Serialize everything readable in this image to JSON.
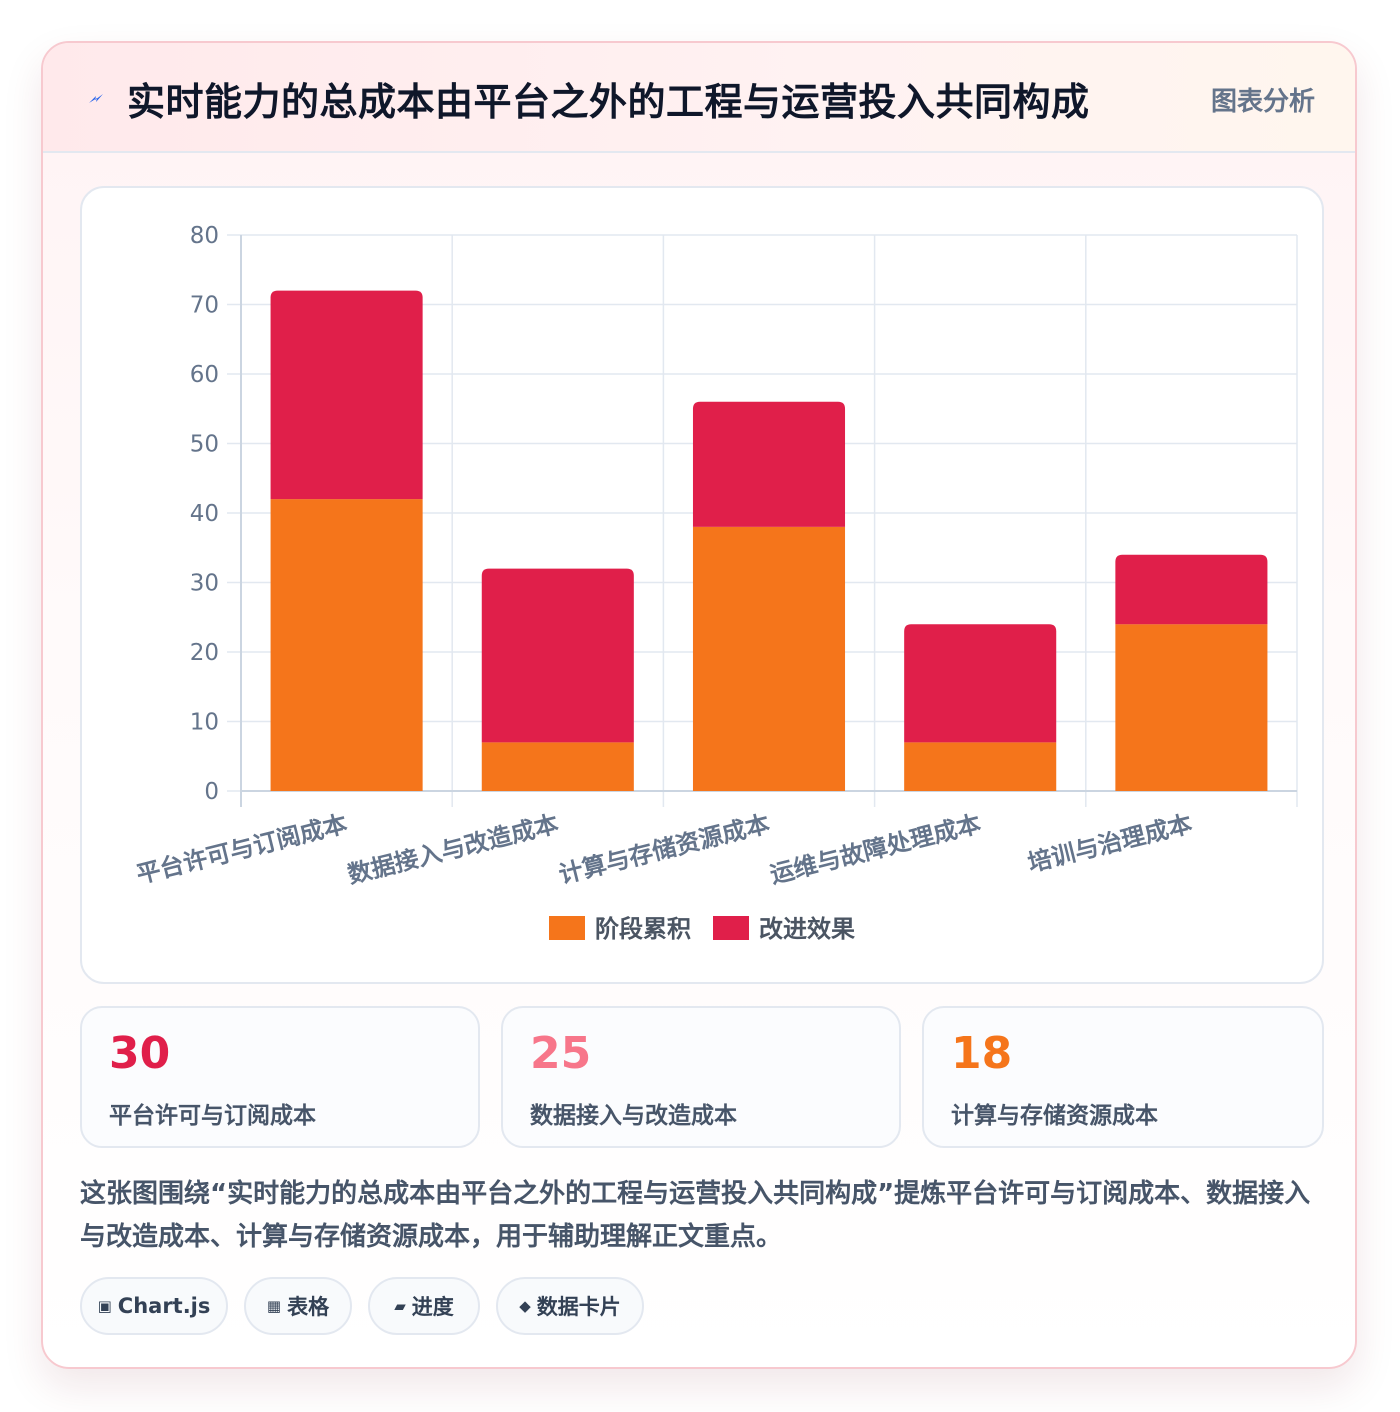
{
  "header": {
    "icon": "lightning-bolt-icon",
    "title": "实时能力的总成本由平台之外的工程与运营投入共同构成",
    "tag": "图表分析"
  },
  "chart_data": {
    "type": "bar",
    "stacked": true,
    "categories": [
      "平台许可与订阅成本",
      "数据接入与改造成本",
      "计算与存储资源成本",
      "运维与故障处理成本",
      "培训与治理成本"
    ],
    "series": [
      {
        "name": "阶段累积",
        "values": [
          42,
          7,
          38,
          7,
          24
        ],
        "color": "#f5751b"
      },
      {
        "name": "改进效果",
        "values": [
          30,
          25,
          18,
          17,
          10
        ],
        "color": "#e01f4a"
      }
    ],
    "ylim": [
      0,
      80
    ],
    "yticks": [
      0,
      10,
      20,
      30,
      40,
      50,
      60,
      70,
      80
    ],
    "grid": true,
    "legend_position": "bottom"
  },
  "stats": [
    {
      "value": "30",
      "label": "平台许可与订阅成本",
      "color": "#e01f4a"
    },
    {
      "value": "25",
      "label": "数据接入与改造成本",
      "color": "#f7768a"
    },
    {
      "value": "18",
      "label": "计算与存储资源成本",
      "color": "#f5751b"
    }
  ],
  "summary": "这张图围绕“实时能力的总成本由平台之外的工程与运营投入共同构成”提炼平台许可与订阅成本、数据接入与改造成本、计算与存储资源成本，用于辅助理解正文重点。",
  "tags": [
    {
      "icon": "▣",
      "label": "Chart.js"
    },
    {
      "icon": "▦",
      "label": "表格"
    },
    {
      "icon": "▰",
      "label": "进度"
    },
    {
      "icon": "◆",
      "label": "数据卡片"
    }
  ]
}
